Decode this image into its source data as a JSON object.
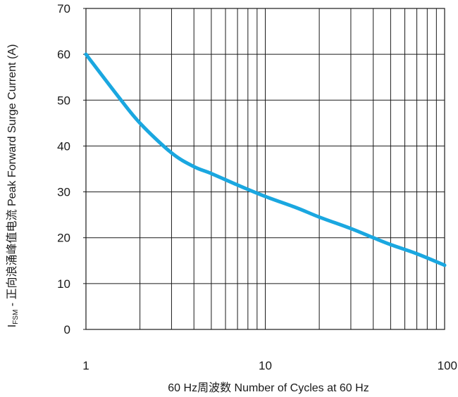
{
  "chart_data": {
    "type": "line",
    "xlabel": "60 Hz周波数 Number of Cycles at 60 Hz",
    "ylabel": "I_FSM - 正向浪涌峰值电流 Peak Forward Surge Current (A)",
    "ylabel_main": "I",
    "ylabel_sub": "FSM",
    "ylabel_rest": " - 正向浪涌峰值电流 Peak Forward Surge Current (A)",
    "x_scale": "log",
    "xlim": [
      1,
      100
    ],
    "ylim": [
      0,
      70
    ],
    "x_ticks": [
      1,
      10,
      100
    ],
    "x_tick_labels": [
      "1",
      "10",
      "100"
    ],
    "y_ticks": [
      0,
      10,
      20,
      30,
      40,
      50,
      60,
      70
    ],
    "y_tick_labels": [
      "0",
      "10",
      "20",
      "30",
      "40",
      "50",
      "60",
      "70"
    ],
    "grid": true,
    "line_color": "#1aa7e0",
    "series": [
      {
        "x": [
          1,
          1.5,
          2,
          3,
          4,
          5,
          7,
          10,
          15,
          20,
          30,
          40,
          50,
          70,
          100
        ],
        "y": [
          60,
          51,
          45,
          38.5,
          35.5,
          34,
          31.5,
          29,
          26.5,
          24.5,
          22,
          20,
          18.5,
          16.5,
          14
        ]
      }
    ]
  }
}
